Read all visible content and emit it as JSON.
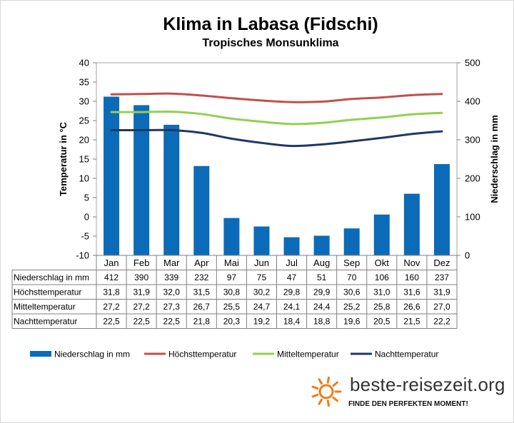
{
  "title": "Klima in Labasa (Fidschi)",
  "subtitle": "Tropisches Monsunklima",
  "logo": {
    "text": "beste-reisezeit.org",
    "slogan": "FINDE DEN PERFEKTEN MOMENT!",
    "icon": "sun-icon",
    "color": "#f07c1a"
  },
  "chart_data": {
    "type": "bar",
    "categories": [
      "Jan",
      "Feb",
      "Mar",
      "Apr",
      "Mai",
      "Jun",
      "Jul",
      "Aug",
      "Sep",
      "Okt",
      "Nov",
      "Dez"
    ],
    "y_left": {
      "label": "Temperatur in °C",
      "range": [
        -10,
        40
      ],
      "ticks": [
        "40",
        "35",
        "30",
        "25",
        "20",
        "15",
        "10",
        "5",
        "0",
        "-5",
        "-10"
      ]
    },
    "y_right": {
      "label": "Niederschlag in mm",
      "range": [
        0,
        500
      ],
      "ticks": [
        "500",
        "400",
        "300",
        "200",
        "100",
        "0"
      ]
    },
    "grid": false,
    "legend_position": "bottom",
    "series": [
      {
        "name": "Niederschlag in mm",
        "type": "bar",
        "axis": "right",
        "color": "#0b6bb8",
        "values": [
          412,
          390,
          339,
          232,
          97,
          75,
          47,
          51,
          70,
          106,
          160,
          237
        ],
        "labels": [
          "412",
          "390",
          "339",
          "232",
          "97",
          "75",
          "47",
          "51",
          "70",
          "106",
          "160",
          "237"
        ]
      },
      {
        "name": "Höchsttemperatur",
        "type": "line",
        "axis": "left",
        "color": "#c0504d",
        "values": [
          31.8,
          31.9,
          32.0,
          31.5,
          30.8,
          30.2,
          29.8,
          29.9,
          30.6,
          31.0,
          31.6,
          31.9
        ],
        "labels": [
          "31,8",
          "31,9",
          "32,0",
          "31,5",
          "30,8",
          "30,2",
          "29,8",
          "29,9",
          "30,6",
          "31,0",
          "31,6",
          "31,9"
        ]
      },
      {
        "name": "Mitteltemperatur",
        "type": "line",
        "axis": "left",
        "color": "#92d050",
        "values": [
          27.2,
          27.2,
          27.3,
          26.7,
          25.5,
          24.7,
          24.1,
          24.4,
          25.2,
          25.8,
          26.6,
          27.0
        ],
        "labels": [
          "27,2",
          "27,2",
          "27,3",
          "26,7",
          "25,5",
          "24,7",
          "24,1",
          "24,4",
          "25,2",
          "25,8",
          "26,6",
          "27,0"
        ]
      },
      {
        "name": "Nachttemperatur",
        "type": "line",
        "axis": "left",
        "color": "#1f3864",
        "values": [
          22.5,
          22.5,
          22.5,
          21.8,
          20.3,
          19.2,
          18.4,
          18.8,
          19.6,
          20.5,
          21.5,
          22.2
        ],
        "labels": [
          "22,5",
          "22,5",
          "22,5",
          "21,8",
          "20,3",
          "19,2",
          "18,4",
          "18,8",
          "19,6",
          "20,5",
          "21,5",
          "22,2"
        ]
      }
    ]
  }
}
